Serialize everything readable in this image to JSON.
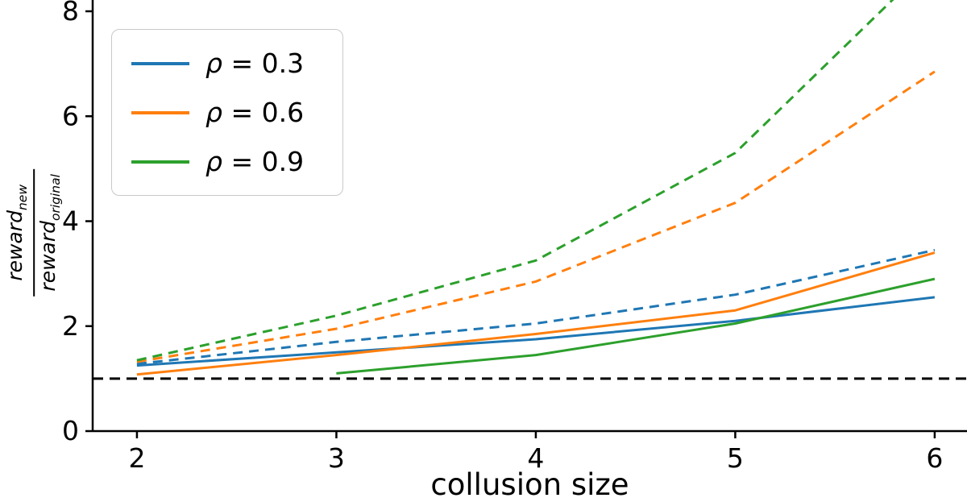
{
  "chart_data": {
    "type": "line",
    "title": "",
    "xlabel": "collusion size",
    "ylabel": {
      "num_base": "reward",
      "num_sub": "new",
      "den_base": "reward",
      "den_sub": "original"
    },
    "xlim": [
      1.778,
      6.162
    ],
    "ylim": [
      0,
      8
    ],
    "xticks": [
      2,
      3,
      4,
      5,
      6
    ],
    "yticks": [
      0,
      2,
      4,
      6,
      8
    ],
    "grid": false,
    "legend_position": "upper-left",
    "legend": [
      {
        "id": "rho-0.3",
        "symbol": "ρ",
        "text": "= 0.3",
        "color": "#1f77b4"
      },
      {
        "id": "rho-0.6",
        "symbol": "ρ",
        "text": "= 0.6",
        "color": "#ff7f0e"
      },
      {
        "id": "rho-0.9",
        "symbol": "ρ",
        "text": "= 0.9",
        "color": "#2ca02c"
      }
    ],
    "series": [
      {
        "id": "rho-0.3-solid",
        "name": "rho=0.3 solid",
        "color": "#1f77b4",
        "style": "solid",
        "x": [
          2,
          3,
          4,
          5,
          6
        ],
        "y": [
          1.25,
          1.5,
          1.75,
          2.1,
          2.55
        ]
      },
      {
        "id": "rho-0.6-solid",
        "name": "rho=0.6 solid",
        "color": "#ff7f0e",
        "style": "solid",
        "x": [
          2,
          3,
          4,
          5,
          6
        ],
        "y": [
          1.08,
          1.45,
          1.85,
          2.3,
          3.4
        ]
      },
      {
        "id": "rho-0.9-solid",
        "name": "rho=0.9 solid",
        "color": "#2ca02c",
        "style": "solid",
        "x": [
          3,
          4,
          5,
          6
        ],
        "y": [
          1.1,
          1.45,
          2.05,
          2.9
        ]
      },
      {
        "id": "rho-0.3-dashed",
        "name": "rho=0.3 dashed",
        "color": "#1f77b4",
        "style": "dashed",
        "x": [
          2,
          3,
          4,
          5,
          6
        ],
        "y": [
          1.28,
          1.7,
          2.05,
          2.6,
          3.45
        ]
      },
      {
        "id": "rho-0.6-dashed",
        "name": "rho=0.6 dashed",
        "color": "#ff7f0e",
        "style": "dashed",
        "x": [
          2,
          3,
          4,
          5,
          6
        ],
        "y": [
          1.32,
          1.95,
          2.85,
          4.35,
          6.85
        ]
      },
      {
        "id": "rho-0.9-dashed",
        "name": "rho=0.9 dashed",
        "color": "#2ca02c",
        "style": "dashed",
        "x": [
          2,
          3,
          4,
          5,
          6
        ],
        "y": [
          1.35,
          2.2,
          3.25,
          5.3,
          9.0
        ]
      },
      {
        "id": "baseline-y1",
        "name": "baseline y=1",
        "color": "#000000",
        "style": "dashed",
        "dash": "13 8",
        "width": 3,
        "x": [
          1.778,
          6.162
        ],
        "y": [
          1,
          1
        ]
      }
    ]
  }
}
